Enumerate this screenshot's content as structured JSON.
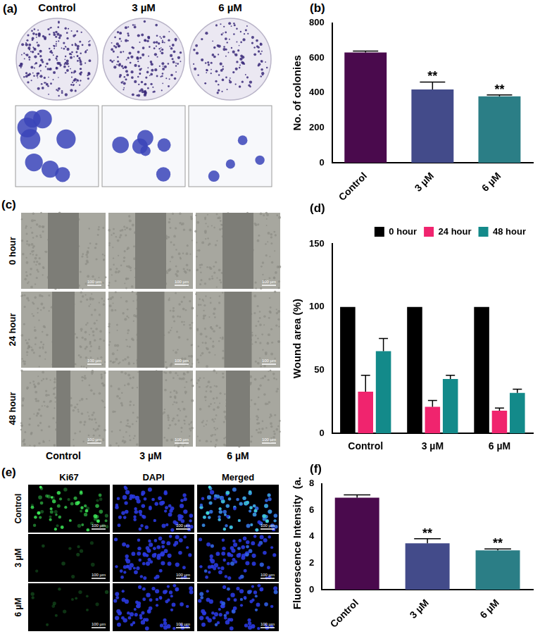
{
  "chart_data": [
    {
      "panel": "(b)",
      "type": "bar",
      "categories": [
        "Control",
        "3 µM",
        "6 µM"
      ],
      "values": [
        632,
        420,
        380
      ],
      "errors": [
        8,
        42,
        8
      ],
      "significance": [
        null,
        "**",
        "**"
      ],
      "colors": [
        "#4a0a4d",
        "#434b8a",
        "#2b7e86"
      ],
      "ylabel": "No. of colonies",
      "ylim": [
        0,
        800
      ],
      "yticks": [
        0,
        200,
        400,
        600,
        800
      ],
      "grid": false
    },
    {
      "panel": "(d)",
      "type": "bar",
      "categories": [
        "Control",
        "3 µM",
        "6 µM"
      ],
      "series": [
        {
          "name": "0 hour",
          "color": "#000000",
          "values": [
            100,
            100,
            100
          ]
        },
        {
          "name": "24 hour",
          "color": "#f0246e",
          "values": [
            33,
            21,
            18
          ],
          "errors": [
            13,
            5,
            2
          ]
        },
        {
          "name": "48 hour",
          "color": "#138a8a",
          "values": [
            65,
            43,
            32
          ],
          "errors": [
            10,
            3,
            3
          ]
        }
      ],
      "ylabel": "Wound area (%)",
      "ylim": [
        0,
        150
      ],
      "yticks": [
        0,
        50,
        100,
        150
      ],
      "grid": false,
      "legend": "top-right"
    },
    {
      "panel": "(f)",
      "type": "bar",
      "categories": [
        "Control",
        "3 µM",
        "6 µM"
      ],
      "values": [
        6.95,
        3.5,
        2.97
      ],
      "errors": [
        0.22,
        0.35,
        0.1
      ],
      "significance": [
        null,
        "**",
        "**"
      ],
      "colors": [
        "#4a0a4d",
        "#434b8a",
        "#2b7e86"
      ],
      "ylabel": "Fluorescence Intensity  (a.u.)",
      "ylim": [
        0,
        8
      ],
      "yticks": [
        0,
        2,
        4,
        6,
        8
      ],
      "grid": false
    }
  ],
  "image_panels": [
    {
      "panel": "(a)",
      "columns": [
        "Control",
        "3 µM",
        "6 µM"
      ]
    },
    {
      "panel": "(c)",
      "rows": [
        "0 hour",
        "24 hour",
        "48 hour"
      ],
      "columns": [
        "Control",
        "3 µM",
        "6 µM"
      ],
      "scale_bar": "100 µm"
    },
    {
      "panel": "(e)",
      "rows": [
        "Control",
        "3 µM",
        "6 µM"
      ],
      "columns": [
        "Ki67",
        "DAPI",
        "Merged"
      ],
      "scale_bar": "100 µm"
    }
  ]
}
